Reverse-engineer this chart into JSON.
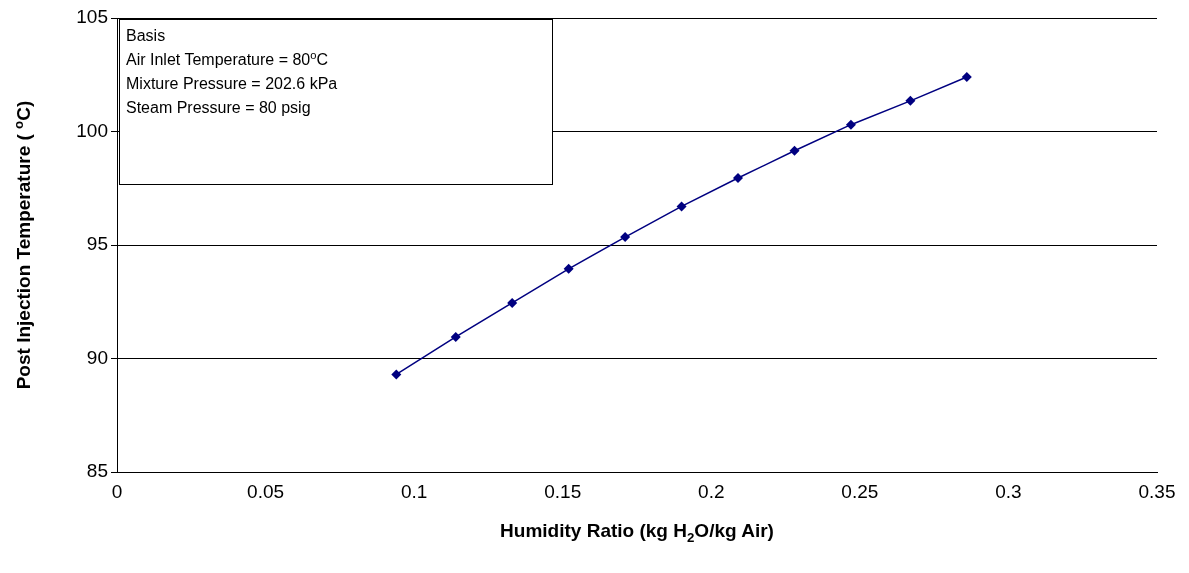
{
  "chart_data": {
    "type": "line",
    "xlabel": "Humidity Ratio (kg H$_{2}$O/kg Air)",
    "ylabel": "Post Injection Temperature ( $^{o}$C)",
    "annotations": [
      "Basis",
      "Air Inlet Temperature = 80$^{o}$C",
      "Mixture Pressure = 202.6 kPa",
      "Steam Pressure = 80 psig"
    ],
    "x": [
      0.094,
      0.114,
      0.133,
      0.152,
      0.171,
      0.19,
      0.209,
      0.228,
      0.247,
      0.267,
      0.286
    ],
    "series": [
      {
        "color": "#000080",
        "values": [
          89.3,
          90.95,
          92.45,
          93.95,
          95.35,
          96.7,
          97.95,
          99.15,
          100.3,
          101.35,
          102.4
        ]
      }
    ],
    "xlim": [
      0,
      0.35
    ],
    "xticks": [
      0,
      0.05,
      0.1,
      0.15,
      0.2,
      0.25,
      0.3,
      0.35
    ],
    "ylim": [
      85,
      105
    ],
    "yticks": [
      85,
      90,
      95,
      100,
      105
    ],
    "grid": "y",
    "marker": "diamond",
    "line_style": "solid"
  }
}
